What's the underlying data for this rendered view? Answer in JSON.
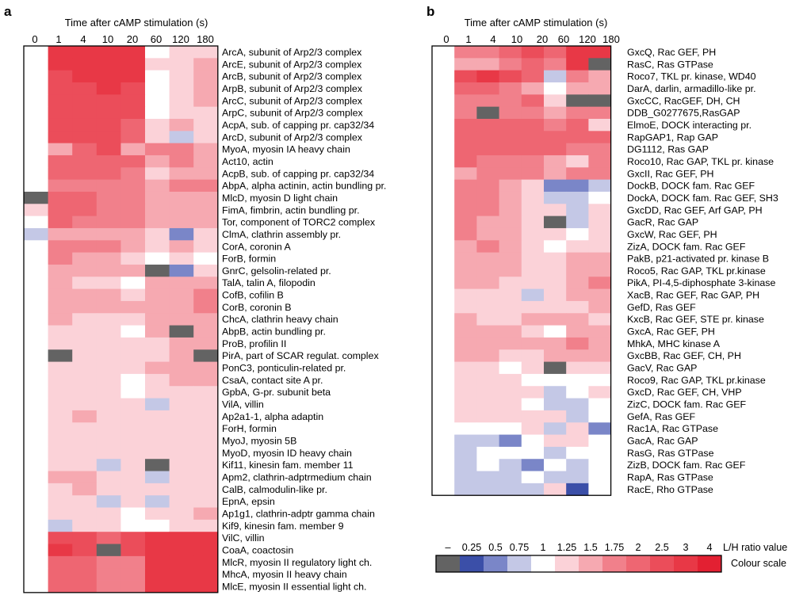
{
  "figure": {
    "value_colors": {
      "missing": "#636363",
      "0.25": "#3b4fa8",
      "0.5": "#7a86c8",
      "0.75": "#c4c8e6",
      "1": "#ffffff",
      "1.25": "#fbd2d8",
      "1.5": "#f6a9b1",
      "1.75": "#f1808b",
      "2": "#ee6672",
      "2.5": "#eb4d5a",
      "3": "#e83846",
      "4": "#e32032"
    }
  },
  "chart_data": [
    {
      "type": "heatmap",
      "panel": "a",
      "title": "Time after cAMP stimulation (s)",
      "xlabel": "Time after cAMP stimulation (s)",
      "columns": [
        "0",
        "1",
        "4",
        "10",
        "20",
        "60",
        "120",
        "180"
      ],
      "rows": [
        "ArcA, subunit of Arp2/3 complex",
        "ArcE, subunit of Arp2/3 complex",
        "ArcB, subunit of Arp2/3 complex",
        "ArpB, subunit of Arp2/3 complex",
        "ArcC, subunit of Arp2/3 complex",
        "ArpC, subunit of Arp2/3 complex",
        "AcpA, sub. of capping pr. cap32/34",
        "ArcD, subunit of Arp2/3 complex",
        "MyoA, myosin IA heavy chain",
        "Act10, actin",
        "AcpB, sub. of capping pr. cap32/34",
        "AbpA, alpha actinin, actin bundling pr.",
        "MlcD, myosin D light chain",
        "FimA, fimbrin, actin bundling pr.",
        "Tor, component of TORC2 complex",
        "ClmA, clathrin assembly pr.",
        "CorA, coronin A",
        "ForB, formin",
        "GnrC, gelsolin-related pr.",
        "TalA, talin A, filopodin",
        "CofB, cofilin B",
        "CorB, coronin B",
        "ChcA, clathrin heavy chain",
        "AbpB, actin bundling pr.",
        "ProB, profilin II",
        "PirA, part of SCAR regulat. complex",
        "PonC3, ponticulin-related pr.",
        "CsaA, contact site A pr.",
        "GpbA, G-pr. subunit beta",
        "VilA, villin",
        "Ap2a1-1, alpha adaptin",
        "ForH, formin",
        "MyoJ, myosin 5B",
        "MyoD, myosin ID heavy chain",
        "Kif11, kinesin fam. member 11",
        "Apm2, clathrin-adptrmedium chain",
        "CalB, calmodulin-like pr.",
        "EpnA, epsin",
        "Ap1g1, clathrin-adptr gamma chain",
        "Kif9, kinesin fam. member 9",
        "VilC, villin",
        "CoaA, coactosin",
        "MlcR, myosin II regulatory light ch.",
        "MhcA, myosin II heavy chain",
        "MlcE, myosin II essential light ch."
      ],
      "values": [
        [
          1,
          3,
          3,
          3,
          3,
          1,
          1.25,
          1.25
        ],
        [
          1,
          3,
          3,
          3,
          3,
          1.25,
          1.25,
          1.5
        ],
        [
          1,
          2.5,
          3,
          3,
          3,
          1,
          1.25,
          1.5
        ],
        [
          1,
          2.5,
          2.5,
          3,
          2.5,
          1,
          1.25,
          1.5
        ],
        [
          1,
          2.5,
          2.5,
          2.5,
          2.5,
          1,
          1.25,
          1.5
        ],
        [
          1,
          2.5,
          2.5,
          2.5,
          2.5,
          1,
          1.25,
          1.25
        ],
        [
          1,
          2.5,
          2.5,
          2.5,
          2,
          1.25,
          1.5,
          1.25
        ],
        [
          1,
          2.5,
          2.5,
          2.5,
          2,
          1.25,
          0.75,
          1.25
        ],
        [
          1,
          1.5,
          2,
          2.5,
          1.5,
          1.75,
          1.75,
          1.5
        ],
        [
          1,
          2,
          2,
          2,
          2,
          1.5,
          1.75,
          1.5
        ],
        [
          1,
          2,
          2,
          2,
          1.75,
          1.25,
          1.5,
          1.5
        ],
        [
          1,
          1.75,
          1.75,
          1.75,
          1.75,
          1.5,
          1.75,
          1.75
        ],
        [
          "missing",
          2,
          2,
          1.75,
          1.75,
          1.5,
          1.5,
          1.5
        ],
        [
          1.25,
          2,
          2,
          1.75,
          1.75,
          1.5,
          1.5,
          1.5
        ],
        [
          1,
          2,
          1.75,
          1.75,
          1.75,
          1.5,
          1.5,
          1.5
        ],
        [
          0.75,
          1.5,
          1.5,
          1.5,
          1.5,
          1.25,
          0.5,
          1.25
        ],
        [
          1,
          1.75,
          1.75,
          1.75,
          1.5,
          1.25,
          1.5,
          1.25
        ],
        [
          1,
          1.75,
          1.5,
          1.5,
          1.25,
          1,
          1.25,
          1
        ],
        [
          1,
          1.5,
          1.5,
          1.5,
          1.5,
          "missing",
          0.5,
          1.25
        ],
        [
          1,
          1.5,
          1.25,
          1.25,
          1,
          1.5,
          1.5,
          1.5
        ],
        [
          1,
          1.5,
          1.5,
          1.5,
          1.25,
          1.5,
          1.5,
          1.75
        ],
        [
          1,
          1.5,
          1.5,
          1.5,
          1.5,
          1.5,
          1.5,
          1.75
        ],
        [
          1,
          1.5,
          1.25,
          1.25,
          1.25,
          1.5,
          1.5,
          1.5
        ],
        [
          1,
          1.25,
          1.25,
          1.25,
          1,
          1.5,
          "missing",
          1.5
        ],
        [
          1,
          1.25,
          1.25,
          1.25,
          1.25,
          1.25,
          1.5,
          1.5
        ],
        [
          1,
          "missing",
          1.25,
          1.25,
          1.25,
          1.25,
          1.5,
          "missing"
        ],
        [
          1,
          1.25,
          1.25,
          1.25,
          1.25,
          1.5,
          1.5,
          1.5
        ],
        [
          1,
          1.25,
          1.25,
          1.25,
          1,
          1.25,
          1.5,
          1.5
        ],
        [
          1,
          1.25,
          1.25,
          1.25,
          1,
          1.25,
          1.25,
          1.25
        ],
        [
          1,
          1.25,
          1.25,
          1.25,
          1.25,
          0.75,
          1.25,
          1.25
        ],
        [
          1,
          1.25,
          1.5,
          1.25,
          1.25,
          1.25,
          1.25,
          1.25
        ],
        [
          1,
          1.25,
          1.25,
          1.25,
          1.25,
          1.25,
          1.25,
          1.25
        ],
        [
          1,
          1.25,
          1.25,
          1.25,
          1.25,
          1.25,
          1.25,
          1.25
        ],
        [
          1,
          1.25,
          1.25,
          1.25,
          1.25,
          1.25,
          1.25,
          1.25
        ],
        [
          1,
          1.25,
          1.25,
          0.75,
          1.25,
          "missing",
          1.25,
          1.25
        ],
        [
          1,
          1.5,
          1.5,
          1.25,
          1.25,
          0.75,
          1.25,
          1.25
        ],
        [
          1,
          1.25,
          1.5,
          1.25,
          1.25,
          1.25,
          1.25,
          1.25
        ],
        [
          1,
          1.25,
          1.25,
          0.75,
          1.25,
          0.75,
          1.25,
          1.25
        ],
        [
          1,
          1.25,
          1.25,
          1.25,
          1,
          1.25,
          1.25,
          1.5
        ],
        [
          1,
          0.75,
          1.25,
          1.25,
          1,
          1,
          1.25,
          1.25
        ],
        [
          1,
          2.5,
          2.5,
          2,
          2.5,
          3,
          3,
          3
        ],
        [
          1,
          3,
          2.5,
          "missing",
          2.5,
          3,
          3,
          3
        ],
        [
          1,
          2,
          2,
          1.75,
          1.75,
          3,
          3,
          3
        ],
        [
          1,
          2,
          2,
          1.75,
          1.75,
          3,
          3,
          3
        ],
        [
          1,
          2,
          2,
          1.75,
          1.75,
          3,
          3,
          3
        ]
      ]
    },
    {
      "type": "heatmap",
      "panel": "b",
      "title": "Time after cAMP stimulation (s)",
      "xlabel": "Time after cAMP stimulation (s)",
      "columns": [
        "0",
        "1",
        "4",
        "10",
        "20",
        "60",
        "120",
        "180"
      ],
      "rows": [
        "GxcQ, Rac GEF, PH",
        "RasC, Ras GTPase",
        "Roco7, TKL pr. kinase, WD40",
        "DarA, darlin, armadillo-like pr.",
        "GxcCC, RacGEF, DH, CH",
        "DDB_G0277675,RasGAP",
        "ElmoE, DOCK interacting pr.",
        "RapGAP1, Rap GAP",
        "DG1112, Ras GAP",
        "Roco10, Rac GAP, TKL pr. kinase",
        "GxcII, Rac GEF, PH",
        "DockB, DOCK fam. Rac GEF",
        "DockA, DOCK fam. Rac GEF, SH3",
        "GxcDD, Rac GEF, Arf GAP, PH",
        "GacR, Rac GAP",
        "GxcW, Rac GEF, PH",
        "ZizA, DOCK fam. Rac GEF",
        "PakB, p21-activated pr. kinase B",
        "Roco5, Rac GAP, TKL pr.kinase",
        "PikA, PI-4,5-diphosphate 3-kinase",
        "XacB, Rac GEF, Rac GAP, PH",
        "GefD, Ras GEF",
        "KxcB, Rac GEF, STE pr. kinase",
        "GxcA, Rac GEF, PH",
        "MhkA, MHC kinase A",
        "GxcBB, Rac GEF, CH, PH",
        "GacV, Rac GAP",
        "Roco9, Rac GAP, TKL pr.kinase",
        "GxcD, Rac GEF, CH, VHP",
        "ZizC, DOCK fam. Rac GEF",
        "GefA, Ras GEF",
        "Rac1A, Rac GTPase",
        "GacA, Rac GAP",
        "RasG, Ras GTPase",
        "ZizB, DOCK fam. Rac GEF",
        "RapA, Ras GTPase",
        "RacE, Rho GTPase"
      ],
      "values": [
        [
          1,
          1.75,
          1.75,
          2,
          2.5,
          2,
          3,
          3
        ],
        [
          1,
          1.5,
          1.5,
          1.75,
          2,
          1.75,
          3,
          "missing"
        ],
        [
          1,
          2.5,
          3,
          2.5,
          2,
          0.75,
          1.75,
          1.5
        ],
        [
          1,
          2,
          2,
          1.75,
          1.5,
          1,
          1.5,
          1.5
        ],
        [
          1,
          1.75,
          1.75,
          1.75,
          2,
          1.25,
          "missing",
          "missing"
        ],
        [
          1,
          1.75,
          "missing",
          1.75,
          1.75,
          1.5,
          1.75,
          1.75
        ],
        [
          1,
          2,
          2,
          2,
          2,
          1.75,
          2,
          1.25
        ],
        [
          1,
          2,
          2,
          2,
          2,
          2,
          2,
          2
        ],
        [
          1,
          2,
          2,
          2,
          2,
          2,
          1.75,
          1.75
        ],
        [
          1,
          2,
          1.75,
          1.75,
          1.75,
          1.5,
          1.25,
          1.75
        ],
        [
          1,
          1.5,
          1.75,
          1.75,
          1.75,
          1.5,
          1.75,
          1.75
        ],
        [
          1,
          1.75,
          1.75,
          1.5,
          1.25,
          0.5,
          0.5,
          0.75
        ],
        [
          1,
          1.75,
          1.75,
          1.5,
          1.25,
          0.75,
          0.75,
          1
        ],
        [
          1,
          1.75,
          1.75,
          1.5,
          1.25,
          1.25,
          0.75,
          1.25
        ],
        [
          1,
          1.75,
          1.5,
          1.5,
          1.25,
          "missing",
          0.75,
          1.25
        ],
        [
          1,
          1.75,
          1.5,
          1.5,
          1.25,
          1.25,
          1,
          1.25
        ],
        [
          1,
          1.5,
          1.75,
          1.5,
          1.25,
          1,
          1.25,
          1.25
        ],
        [
          1,
          1.5,
          1.5,
          1.5,
          1.25,
          1.25,
          1.5,
          1.5
        ],
        [
          1,
          1.5,
          1.5,
          1.5,
          1.25,
          1.25,
          1.5,
          1.5
        ],
        [
          1,
          1.5,
          1.5,
          1.25,
          1.25,
          1.25,
          1.5,
          1.75
        ],
        [
          1,
          1.25,
          1.25,
          1.25,
          0.75,
          1.25,
          1.5,
          1.5
        ],
        [
          1,
          1.25,
          1.25,
          1.25,
          1.25,
          1.25,
          1.25,
          1.5
        ],
        [
          1,
          1.5,
          1.25,
          1.25,
          1.5,
          1.5,
          1.5,
          1.25
        ],
        [
          1,
          1.5,
          1.5,
          1.5,
          1.25,
          1,
          1.5,
          1.5
        ],
        [
          1,
          1.5,
          1.5,
          1.5,
          1.5,
          1.5,
          1.75,
          1.5
        ],
        [
          1,
          1.5,
          1.5,
          1.25,
          1.25,
          1.5,
          1.5,
          1.5
        ],
        [
          1,
          1.25,
          1.25,
          1,
          1.25,
          "missing",
          1.25,
          1.25
        ],
        [
          1,
          1.25,
          1.25,
          1.25,
          1,
          1,
          1,
          1
        ],
        [
          1,
          1.25,
          1.25,
          1.25,
          1.25,
          0.75,
          1,
          1.25
        ],
        [
          1,
          1.25,
          1.25,
          1.25,
          1,
          0.75,
          0.75,
          1
        ],
        [
          1,
          1.25,
          1.25,
          1.25,
          1.25,
          1.25,
          0.75,
          1
        ],
        [
          1,
          1,
          1,
          1,
          1.25,
          0.75,
          1.25,
          0.5
        ],
        [
          1,
          0.75,
          0.75,
          0.5,
          1,
          1.25,
          1.25,
          1
        ],
        [
          1,
          0.75,
          1,
          1,
          1,
          0.75,
          1,
          1
        ],
        [
          1,
          0.75,
          1,
          0.75,
          0.5,
          1,
          0.75,
          1
        ],
        [
          1,
          0.75,
          0.75,
          0.75,
          1,
          0.75,
          0.75,
          1
        ],
        [
          1,
          0.75,
          0.75,
          0.75,
          0.75,
          1.25,
          0.25,
          1
        ]
      ]
    },
    {
      "type": "heatmap",
      "role": "colour-scale",
      "title": "Colour scale",
      "xlabel": "L/H ratio value",
      "labels": [
        "–",
        "0.25",
        "0.5",
        "0.75",
        "1",
        "1.25",
        "1.5",
        "1.75",
        "2",
        "2.5",
        "3",
        "4"
      ],
      "values": [
        "missing",
        0.25,
        0.5,
        0.75,
        1,
        1.25,
        1.5,
        1.75,
        2,
        2.5,
        3,
        4
      ]
    }
  ]
}
